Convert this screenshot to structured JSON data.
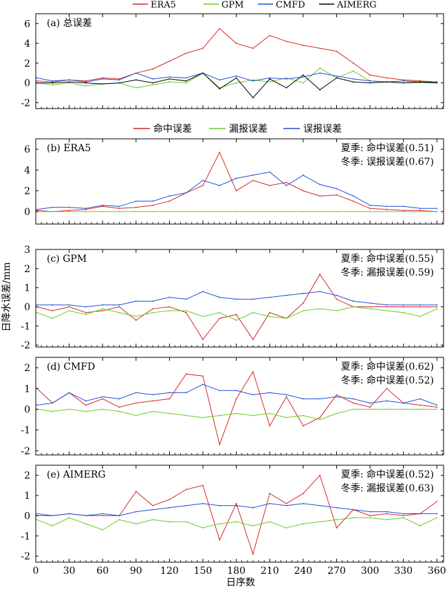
{
  "legend_top": [
    {
      "label": "ERA5",
      "color": "#d62728"
    },
    {
      "label": "GPM",
      "color": "#66cc22"
    },
    {
      "label": "CMFD",
      "color": "#1f4fd8"
    },
    {
      "label": "AIMERG",
      "color": "#000000"
    }
  ],
  "legend_err": [
    {
      "label": "命中误差",
      "color": "#d62728"
    },
    {
      "label": "漏报误差",
      "color": "#66cc22"
    },
    {
      "label": "误报误差",
      "color": "#1f4fd8"
    }
  ],
  "ylabel": "日降水误差/mm",
  "xlabel": "日序数",
  "chart_data": [
    {
      "type": "line",
      "title": "(a) 总误差",
      "ylim": [
        -2.6,
        7
      ],
      "yticks": [
        -2,
        0,
        2,
        4,
        6
      ],
      "xlim": [
        0,
        366
      ],
      "xticks": [
        0,
        30,
        60,
        90,
        120,
        150,
        180,
        210,
        240,
        270,
        300,
        330,
        360
      ],
      "x": [
        1,
        15,
        30,
        45,
        60,
        75,
        90,
        105,
        120,
        135,
        150,
        165,
        180,
        195,
        210,
        225,
        240,
        255,
        270,
        285,
        300,
        315,
        330,
        345,
        360
      ],
      "series": [
        {
          "name": "ERA5",
          "color": "#d62728",
          "values": [
            0.2,
            0.1,
            0.3,
            0.2,
            0.5,
            0.4,
            1.0,
            1.4,
            2.2,
            3.0,
            3.5,
            5.5,
            4.0,
            3.5,
            4.8,
            4.2,
            3.8,
            3.5,
            3.2,
            2.0,
            0.8,
            0.5,
            0.3,
            0.2,
            0.1
          ]
        },
        {
          "name": "GPM",
          "color": "#66cc22",
          "values": [
            0.0,
            -0.2,
            0.0,
            -0.3,
            -0.1,
            0.0,
            -0.5,
            -0.2,
            0.1,
            0.0,
            1.0,
            -0.5,
            0.0,
            0.3,
            0.1,
            0.5,
            0.0,
            1.5,
            0.5,
            1.2,
            0.2,
            0.1,
            0.0,
            0.0,
            0.0
          ]
        },
        {
          "name": "CMFD",
          "color": "#1f4fd8",
          "values": [
            0.5,
            0.2,
            0.3,
            0.1,
            0.4,
            0.3,
            1.0,
            0.4,
            0.6,
            0.5,
            1.0,
            0.3,
            0.7,
            0.2,
            0.5,
            0.4,
            0.6,
            1.0,
            0.7,
            0.4,
            0.2,
            0.1,
            0.2,
            0.1,
            0.1
          ]
        },
        {
          "name": "AIMERG",
          "color": "#000000",
          "values": [
            0.0,
            0.0,
            0.1,
            0.0,
            -0.1,
            0.0,
            0.3,
            0.0,
            0.4,
            0.2,
            1.0,
            -0.6,
            0.5,
            -1.5,
            0.4,
            -0.5,
            0.8,
            -0.7,
            0.5,
            0.1,
            0.0,
            0.1,
            0.0,
            0.1,
            0.0
          ]
        }
      ]
    },
    {
      "type": "line",
      "title": "(b) ERA5",
      "annotations": [
        "夏季: 命中误差(0.51)",
        "冬季: 误报误差(0.67)"
      ],
      "ylim": [
        -1.2,
        7
      ],
      "yticks": [
        0,
        2,
        4,
        6
      ],
      "xlim": [
        0,
        366
      ],
      "xticks": [
        0,
        30,
        60,
        90,
        120,
        150,
        180,
        210,
        240,
        270,
        300,
        330,
        360
      ],
      "x": [
        1,
        15,
        30,
        45,
        60,
        75,
        90,
        105,
        120,
        135,
        150,
        165,
        180,
        195,
        210,
        225,
        240,
        255,
        270,
        285,
        300,
        315,
        330,
        345,
        360
      ],
      "series": [
        {
          "name": "命中误差",
          "color": "#d62728",
          "values": [
            0.1,
            0.0,
            0.1,
            0.2,
            0.5,
            0.3,
            0.4,
            0.6,
            1.0,
            1.8,
            2.5,
            5.7,
            2.0,
            3.0,
            2.5,
            2.8,
            2.0,
            1.5,
            1.6,
            1.0,
            0.3,
            0.2,
            0.1,
            0.1,
            0.0
          ]
        },
        {
          "name": "漏报误差",
          "color": "#66cc22",
          "values": [
            0,
            0,
            0,
            0,
            0,
            0,
            0,
            0,
            0,
            0,
            0,
            0,
            0,
            0,
            0,
            0,
            0,
            0,
            0,
            0,
            0,
            0,
            0,
            0,
            0
          ]
        },
        {
          "name": "误报误差",
          "color": "#1f4fd8",
          "values": [
            0.2,
            0.4,
            0.4,
            0.3,
            0.6,
            0.5,
            1.0,
            1.0,
            1.5,
            1.8,
            3.0,
            2.5,
            3.2,
            3.5,
            3.8,
            2.5,
            3.5,
            2.6,
            2.2,
            1.5,
            0.6,
            0.5,
            0.5,
            0.3,
            0.3
          ]
        }
      ]
    },
    {
      "type": "line",
      "title": "(c) GPM",
      "annotations": [
        "夏季: 命中误差(0.55)",
        "冬季: 漏报误差(0.59)"
      ],
      "ylim": [
        -2.1,
        3
      ],
      "yticks": [
        -2,
        -1,
        0,
        1,
        2,
        3
      ],
      "xlim": [
        0,
        366
      ],
      "xticks": [
        0,
        30,
        60,
        90,
        120,
        150,
        180,
        210,
        240,
        270,
        300,
        330,
        360
      ],
      "x": [
        1,
        15,
        30,
        45,
        60,
        75,
        90,
        105,
        120,
        135,
        150,
        165,
        180,
        195,
        210,
        225,
        240,
        255,
        270,
        285,
        300,
        315,
        330,
        345,
        360
      ],
      "series": [
        {
          "name": "命中误差",
          "color": "#d62728",
          "values": [
            0.0,
            -0.2,
            0.0,
            -0.3,
            -0.2,
            0.0,
            -0.7,
            -0.1,
            0.0,
            -0.3,
            -1.7,
            -0.6,
            -0.4,
            -1.7,
            -0.3,
            -0.6,
            0.2,
            1.7,
            0.4,
            0.0,
            0.0,
            0.0,
            0.0,
            0.0,
            0.0
          ]
        },
        {
          "name": "漏报误差",
          "color": "#66cc22",
          "values": [
            -0.3,
            -0.6,
            -0.2,
            -0.4,
            -0.1,
            -0.3,
            -0.5,
            -0.3,
            -0.2,
            -0.2,
            -0.5,
            -0.3,
            -0.7,
            -0.3,
            -0.5,
            -0.6,
            -0.2,
            -0.1,
            -0.2,
            0.0,
            -0.1,
            -0.2,
            -0.3,
            -0.5,
            -0.1
          ]
        },
        {
          "name": "误报误差",
          "color": "#1f4fd8",
          "values": [
            0.1,
            0.1,
            0.1,
            0.0,
            0.1,
            0.1,
            0.3,
            0.3,
            0.5,
            0.4,
            0.8,
            0.5,
            0.4,
            0.4,
            0.5,
            0.6,
            0.7,
            0.8,
            0.6,
            0.3,
            0.2,
            0.1,
            0.1,
            0.1,
            0.1
          ]
        }
      ]
    },
    {
      "type": "line",
      "title": "(d) CMFD",
      "annotations": [
        "夏季: 命中误差(0.62)",
        "冬季: 命中误差(0.52)"
      ],
      "ylim": [
        -2.2,
        2.5
      ],
      "yticks": [
        -2,
        -1,
        0,
        1,
        2
      ],
      "xlim": [
        0,
        366
      ],
      "xticks": [
        0,
        30,
        60,
        90,
        120,
        150,
        180,
        210,
        240,
        270,
        300,
        330,
        360
      ],
      "x": [
        1,
        15,
        30,
        45,
        60,
        75,
        90,
        105,
        120,
        135,
        150,
        165,
        180,
        195,
        210,
        225,
        240,
        255,
        270,
        285,
        300,
        315,
        330,
        345,
        360
      ],
      "series": [
        {
          "name": "命中误差",
          "color": "#d62728",
          "values": [
            1.0,
            0.3,
            0.8,
            0.2,
            0.5,
            0.1,
            0.3,
            0.4,
            0.5,
            1.7,
            1.6,
            -1.7,
            0.5,
            1.8,
            -0.8,
            0.6,
            -0.8,
            -0.4,
            0.7,
            0.3,
            0.1,
            1.0,
            0.3,
            0.2,
            0.1
          ]
        },
        {
          "name": "漏报误差",
          "color": "#66cc22",
          "values": [
            0.0,
            -0.1,
            0.0,
            -0.1,
            0.0,
            -0.1,
            -0.3,
            -0.1,
            -0.2,
            -0.3,
            -0.4,
            -0.3,
            -0.2,
            -0.3,
            -0.2,
            -0.4,
            -0.3,
            -0.5,
            -0.2,
            0.0,
            0.0,
            0.0,
            0.0,
            0.0,
            0.0
          ]
        },
        {
          "name": "误报误差",
          "color": "#1f4fd8",
          "values": [
            0.2,
            0.3,
            0.8,
            0.4,
            0.6,
            0.5,
            0.8,
            0.7,
            0.8,
            0.8,
            1.2,
            0.9,
            0.9,
            0.7,
            0.8,
            0.7,
            0.5,
            0.5,
            0.6,
            0.5,
            0.3,
            0.4,
            0.3,
            0.5,
            0.2
          ]
        }
      ]
    },
    {
      "type": "line",
      "title": "(e) AIMERG",
      "annotations": [
        "夏季: 命中误差(0.52)",
        "冬季: 漏报误差(0.63)"
      ],
      "ylim": [
        -2.3,
        2.5
      ],
      "yticks": [
        -2,
        -1,
        0,
        1,
        2
      ],
      "xlim": [
        0,
        366
      ],
      "xticks": [
        0,
        30,
        60,
        90,
        120,
        150,
        180,
        210,
        240,
        270,
        300,
        330,
        360
      ],
      "x": [
        1,
        15,
        30,
        45,
        60,
        75,
        90,
        105,
        120,
        135,
        150,
        165,
        180,
        195,
        210,
        225,
        240,
        255,
        270,
        285,
        300,
        315,
        330,
        345,
        360
      ],
      "series": [
        {
          "name": "命中误差",
          "color": "#d62728",
          "values": [
            0.0,
            0.0,
            0.1,
            0.0,
            0.0,
            0.0,
            1.2,
            0.5,
            0.8,
            1.3,
            1.5,
            -1.2,
            0.6,
            -1.9,
            1.1,
            0.6,
            1.1,
            2.0,
            -0.6,
            0.3,
            0.0,
            0.1,
            0.0,
            0.1,
            0.7
          ]
        },
        {
          "name": "漏报误差",
          "color": "#66cc22",
          "values": [
            -0.2,
            -0.5,
            -0.1,
            -0.4,
            -0.7,
            -0.2,
            -0.4,
            -0.2,
            -0.3,
            -0.3,
            -0.6,
            -0.4,
            -0.3,
            -0.5,
            -0.3,
            -0.6,
            -0.4,
            -0.3,
            -0.2,
            -0.1,
            -0.1,
            -0.2,
            -0.1,
            -0.5,
            -0.1
          ]
        },
        {
          "name": "误报误差",
          "color": "#1f4fd8",
          "values": [
            0.1,
            0.0,
            0.1,
            0.0,
            0.1,
            0.0,
            0.2,
            0.3,
            0.4,
            0.5,
            0.6,
            0.5,
            0.5,
            0.4,
            0.6,
            0.5,
            0.6,
            0.5,
            0.4,
            0.3,
            0.2,
            0.2,
            0.1,
            0.1,
            0.1
          ]
        }
      ]
    }
  ]
}
